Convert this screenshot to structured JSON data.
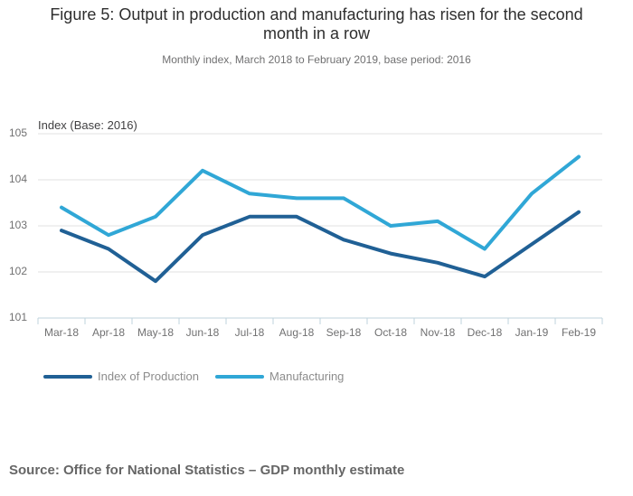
{
  "chart_data": {
    "type": "line",
    "title": "Figure 5: Output in production and manufacturing has risen for the second month in a row",
    "subtitle": "Monthly index, March 2018 to February 2019, base period: 2016",
    "axis_title": "Index (Base: 2016)",
    "source": "Source: Office for National Statistics – GDP monthly estimate",
    "categories": [
      "Mar-18",
      "Apr-18",
      "May-18",
      "Jun-18",
      "Jul-18",
      "Aug-18",
      "Sep-18",
      "Oct-18",
      "Nov-18",
      "Dec-18",
      "Jan-19",
      "Feb-19"
    ],
    "series": [
      {
        "name": "Index of Production",
        "color": "#206095",
        "values": [
          102.9,
          102.5,
          101.8,
          102.8,
          103.2,
          103.2,
          102.7,
          102.4,
          102.2,
          101.9,
          102.6,
          103.3
        ]
      },
      {
        "name": "Manufacturing",
        "color": "#30a7d6",
        "values": [
          103.4,
          102.8,
          103.2,
          104.2,
          103.7,
          103.6,
          103.6,
          103.0,
          103.1,
          102.5,
          103.7,
          104.5
        ]
      }
    ],
    "ylim": [
      101,
      105
    ],
    "yticks": [
      101,
      102,
      103,
      104,
      105
    ],
    "grid": "horizontal",
    "legend_position": "bottom-left",
    "xlabel": "",
    "ylabel": "Index (Base: 2016)"
  }
}
